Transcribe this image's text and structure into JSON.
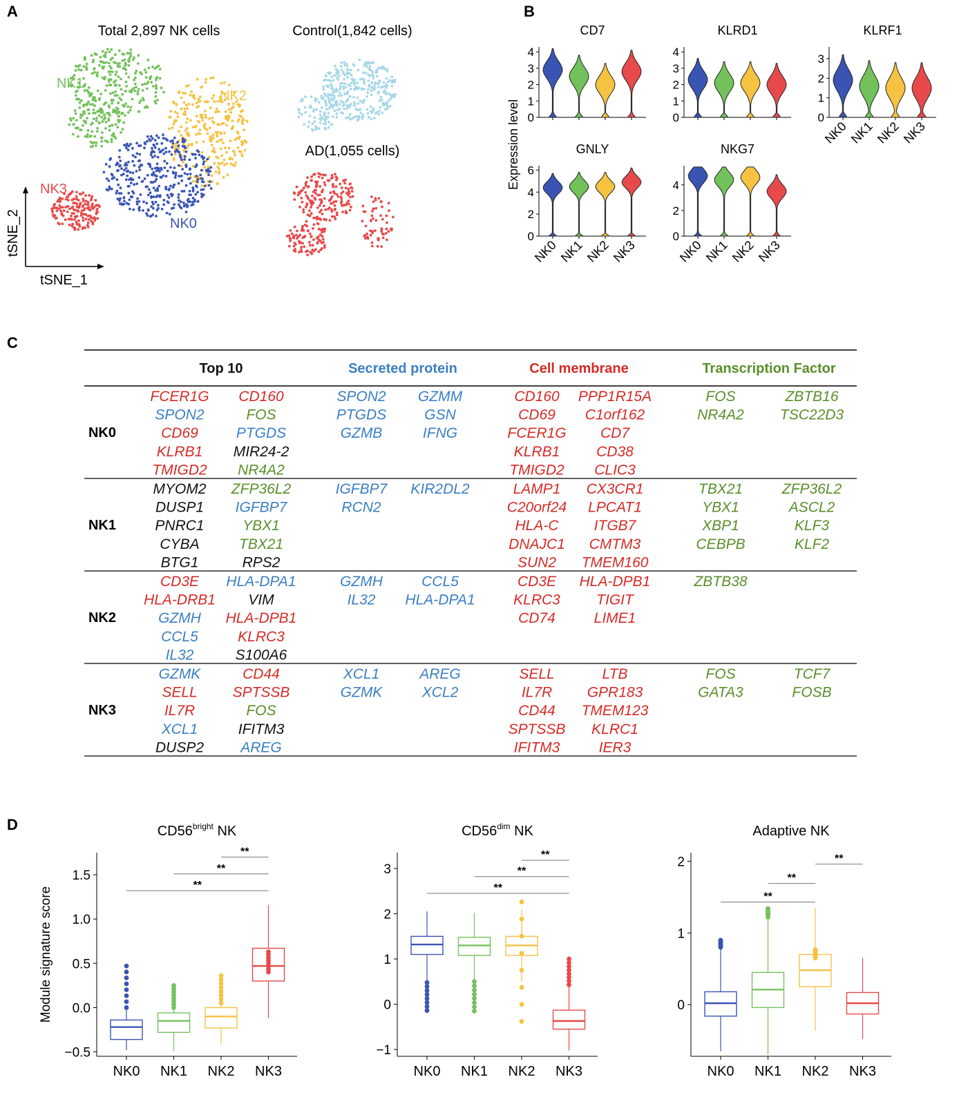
{
  "colors": {
    "NK0": "#3a54b4",
    "NK1": "#73c15b",
    "NK2": "#f5c242",
    "NK3": "#e8494a",
    "control": "#a8d8e6",
    "blue": "#3b7fc4",
    "red": "#d62b26",
    "green": "#5a8f2b",
    "black": "#111111"
  },
  "panels": {
    "a": "A",
    "b": "B",
    "c": "C",
    "d": "D"
  },
  "panelA": {
    "title_total": "Total 2,897 NK cells",
    "title_control": "Control(1,842 cells)",
    "title_ad": "AD(1,055 cells)",
    "cluster_labels": [
      "NK0",
      "NK1",
      "NK2",
      "NK3"
    ],
    "x_axis": "tSNE_1",
    "y_axis": "tSNE_2"
  },
  "panelB": {
    "ylabel": "Expression level",
    "groups": [
      "NK0",
      "NK1",
      "NK2",
      "NK3"
    ],
    "genes": [
      {
        "name": "CD7",
        "ticks": [
          "0",
          "1",
          "2",
          "3",
          "4"
        ]
      },
      {
        "name": "KLRD1",
        "ticks": [
          "0",
          "1",
          "2",
          "3",
          "4"
        ]
      },
      {
        "name": "KLRF1",
        "ticks": [
          "0",
          "1",
          "2",
          "3"
        ]
      },
      {
        "name": "GNLY",
        "ticks": [
          "0",
          "2",
          "4",
          "6"
        ]
      },
      {
        "name": "NKG7",
        "ticks": [
          "0",
          "2",
          "4"
        ]
      }
    ]
  },
  "panelC": {
    "headers": [
      "Top 10",
      "Secreted protein",
      "Cell membrane",
      "Transcription Factor"
    ],
    "rows": [
      {
        "cluster": "NK0",
        "top10": [
          [
            "FCER1G",
            "r"
          ],
          [
            "CD160",
            "r"
          ],
          [
            "SPON2",
            "b"
          ],
          [
            "FOS",
            "g"
          ],
          [
            "CD69",
            "r"
          ],
          [
            "PTGDS",
            "b"
          ],
          [
            "KLRB1",
            "r"
          ],
          [
            "MIR24-2",
            "k"
          ],
          [
            "TMIGD2",
            "r"
          ],
          [
            "NR4A2",
            "g"
          ]
        ],
        "secreted": [
          "SPON2",
          "GZMM",
          "PTGDS",
          "GSN",
          "GZMB",
          "IFNG"
        ],
        "membrane": [
          "CD160",
          "PPP1R15A",
          "CD69",
          "C1orf162",
          "FCER1G",
          "CD7",
          "KLRB1",
          "CD38",
          "TMIGD2",
          "CLIC3"
        ],
        "tf": [
          "FOS",
          "ZBTB16",
          "NR4A2",
          "TSC22D3"
        ]
      },
      {
        "cluster": "NK1",
        "top10": [
          [
            "MYOM2",
            "k"
          ],
          [
            "ZFP36L2",
            "g"
          ],
          [
            "DUSP1",
            "k"
          ],
          [
            "IGFBP7",
            "b"
          ],
          [
            "PNRC1",
            "k"
          ],
          [
            "YBX1",
            "g"
          ],
          [
            "CYBA",
            "k"
          ],
          [
            "TBX21",
            "g"
          ],
          [
            "BTG1",
            "k"
          ],
          [
            "RPS2",
            "k"
          ]
        ],
        "secreted": [
          "IGFBP7",
          "KIR2DL2",
          "RCN2"
        ],
        "membrane": [
          "LAMP1",
          "CX3CR1",
          "C20orf24",
          "LPCAT1",
          "HLA-C",
          "ITGB7",
          "DNAJC1",
          "CMTM3",
          "SUN2",
          "TMEM160"
        ],
        "tf": [
          "TBX21",
          "ZFP36L2",
          "YBX1",
          "ASCL2",
          "XBP1",
          "KLF3",
          "CEBPB",
          "KLF2"
        ]
      },
      {
        "cluster": "NK2",
        "top10": [
          [
            "CD3E",
            "r"
          ],
          [
            "HLA-DPA1",
            "b"
          ],
          [
            "HLA-DRB1",
            "r"
          ],
          [
            "VIM",
            "k"
          ],
          [
            "GZMH",
            "b"
          ],
          [
            "HLA-DPB1",
            "r"
          ],
          [
            "CCL5",
            "b"
          ],
          [
            "KLRC3",
            "r"
          ],
          [
            "IL32",
            "b"
          ],
          [
            "S100A6",
            "k"
          ]
        ],
        "secreted": [
          "GZMH",
          "CCL5",
          "IL32",
          "HLA-DPA1"
        ],
        "membrane": [
          "CD3E",
          "HLA-DPB1",
          "KLRC3",
          "TIGIT",
          "CD74",
          "LIME1"
        ],
        "tf": [
          "ZBTB38"
        ]
      },
      {
        "cluster": "NK3",
        "top10": [
          [
            "GZMK",
            "b"
          ],
          [
            "CD44",
            "r"
          ],
          [
            "SELL",
            "r"
          ],
          [
            "SPTSSB",
            "r"
          ],
          [
            "IL7R",
            "r"
          ],
          [
            "FOS",
            "g"
          ],
          [
            "XCL1",
            "b"
          ],
          [
            "IFITM3",
            "k"
          ],
          [
            "DUSP2",
            "k"
          ],
          [
            "AREG",
            "b"
          ]
        ],
        "secreted": [
          "XCL1",
          "AREG",
          "GZMK",
          "XCL2"
        ],
        "membrane": [
          "SELL",
          "LTB",
          "IL7R",
          "GPR183",
          "CD44",
          "TMEM123",
          "SPTSSB",
          "KLRC1",
          "IFITM3",
          "IER3"
        ],
        "tf": [
          "FOS",
          "TCF7",
          "GATA3",
          "FOSB"
        ]
      }
    ]
  },
  "chart_data": [
    {
      "type": "scatter",
      "title": "Total 2,897 NK cells",
      "xlabel": "tSNE_1",
      "ylabel": "tSNE_2",
      "series": [
        {
          "name": "NK0"
        },
        {
          "name": "NK1"
        },
        {
          "name": "NK2"
        },
        {
          "name": "NK3"
        }
      ]
    },
    {
      "type": "scatter",
      "title": "Control(1,842 cells)"
    },
    {
      "type": "scatter",
      "title": "AD(1,055 cells)"
    },
    {
      "type": "violin",
      "title": "CD7",
      "categories": [
        "NK0",
        "NK1",
        "NK2",
        "NK3"
      ],
      "ylim": [
        0,
        4.3
      ],
      "medians": [
        2.9,
        2.5,
        2.0,
        2.8
      ]
    },
    {
      "type": "violin",
      "title": "KLRD1",
      "categories": [
        "NK0",
        "NK1",
        "NK2",
        "NK3"
      ],
      "ylim": [
        0,
        4.3
      ],
      "medians": [
        2.3,
        2.1,
        2.1,
        2.0
      ]
    },
    {
      "type": "violin",
      "title": "KLRF1",
      "categories": [
        "NK0",
        "NK1",
        "NK2",
        "NK3"
      ],
      "ylim": [
        0,
        3.6
      ],
      "medians": [
        1.9,
        1.6,
        1.5,
        1.5
      ]
    },
    {
      "type": "violin",
      "title": "GNLY",
      "categories": [
        "NK0",
        "NK1",
        "NK2",
        "NK3"
      ],
      "ylim": [
        0,
        6.4
      ],
      "medians": [
        4.4,
        4.5,
        4.5,
        4.9
      ]
    },
    {
      "type": "violin",
      "title": "NKG7",
      "categories": [
        "NK0",
        "NK1",
        "NK2",
        "NK3"
      ],
      "ylim": [
        0,
        5.5
      ],
      "medians": [
        4.7,
        4.4,
        4.6,
        3.5
      ]
    },
    {
      "type": "box",
      "title": "CD56bright NK",
      "title_main": "CD56",
      "title_sup": "bright",
      "title_tail": " NK",
      "ylabel": "Module signature score",
      "categories": [
        "NK0",
        "NK1",
        "NK2",
        "NK3"
      ],
      "ylim": [
        -0.55,
        1.75
      ],
      "yticks": [
        "-0.5",
        "0.0",
        "0.5",
        "1.0",
        "1.5"
      ],
      "ytick_values": [
        -0.5,
        0.0,
        0.5,
        1.0,
        1.5
      ],
      "boxes": [
        {
          "q1": -0.36,
          "median": -0.22,
          "q3": -0.14,
          "wlo": -0.48,
          "whi": -0.02
        },
        {
          "q1": -0.28,
          "median": -0.15,
          "q3": -0.06,
          "wlo": -0.49,
          "whi": 0.12
        },
        {
          "q1": -0.23,
          "median": -0.1,
          "q3": 0.0,
          "wlo": -0.42,
          "whi": 0.22
        },
        {
          "q1": 0.3,
          "median": 0.47,
          "q3": 0.67,
          "wlo": -0.12,
          "whi": 1.16
        }
      ],
      "outliers": [
        [
          0.0,
          0.47
        ],
        [
          0.0,
          0.25
        ],
        [
          0.05,
          0.36
        ],
        [
          0.4,
          0.63
        ]
      ],
      "sig": [
        {
          "from": 0,
          "to": 3,
          "y": 1.32,
          "label": "**"
        },
        {
          "from": 1,
          "to": 3,
          "y": 1.51,
          "label": "**"
        },
        {
          "from": 2,
          "to": 3,
          "y": 1.7,
          "label": "**"
        }
      ]
    },
    {
      "type": "box",
      "title": "CD56dim NK",
      "title_main": "CD56",
      "title_sup": "dim",
      "title_tail": " NK",
      "categories": [
        "NK0",
        "NK1",
        "NK2",
        "NK3"
      ],
      "ylim": [
        -1.15,
        3.35
      ],
      "yticks": [
        "-1",
        "0",
        "1",
        "2",
        "3"
      ],
      "ytick_values": [
        -1,
        0,
        1,
        2,
        3
      ],
      "boxes": [
        {
          "q1": 1.1,
          "median": 1.32,
          "q3": 1.5,
          "wlo": 0.5,
          "whi": 2.05
        },
        {
          "q1": 1.08,
          "median": 1.3,
          "q3": 1.48,
          "wlo": 0.52,
          "whi": 2.02
        },
        {
          "q1": 1.08,
          "median": 1.3,
          "q3": 1.5,
          "wlo": 0.5,
          "whi": 2.1
        },
        {
          "q1": -0.55,
          "median": -0.37,
          "q3": -0.13,
          "wlo": -1.02,
          "whi": 0.42
        }
      ],
      "outliers": [
        [
          -0.14,
          0.48
        ],
        [
          -0.15,
          0.5
        ],
        [
          -0.38,
          2.26
        ],
        [
          0.43,
          1.0
        ]
      ],
      "sig": [
        {
          "from": 0,
          "to": 3,
          "y": 2.45,
          "label": "**"
        },
        {
          "from": 1,
          "to": 3,
          "y": 2.82,
          "label": "**"
        },
        {
          "from": 2,
          "to": 3,
          "y": 3.18,
          "label": "**"
        }
      ]
    },
    {
      "type": "box",
      "title": "Adaptive NK",
      "categories": [
        "NK0",
        "NK1",
        "NK2",
        "NK3"
      ],
      "ylim": [
        -0.72,
        2.12
      ],
      "yticks": [
        "0",
        "1",
        "2"
      ],
      "ytick_values": [
        0,
        1,
        2
      ],
      "boxes": [
        {
          "q1": -0.16,
          "median": 0.02,
          "q3": 0.18,
          "wlo": -0.65,
          "whi": 0.8
        },
        {
          "q1": -0.04,
          "median": 0.21,
          "q3": 0.45,
          "wlo": -0.7,
          "whi": 1.22
        },
        {
          "q1": 0.25,
          "median": 0.48,
          "q3": 0.7,
          "wlo": -0.36,
          "whi": 1.35
        },
        {
          "q1": -0.13,
          "median": 0.02,
          "q3": 0.17,
          "wlo": -0.48,
          "whi": 0.65
        }
      ],
      "outliers": [
        [
          0.8,
          0.9
        ],
        [
          1.22,
          1.34
        ],
        [
          0.65,
          0.77
        ]
      ],
      "sig": [
        {
          "from": 0,
          "to": 2,
          "y": 1.43,
          "label": "**"
        },
        {
          "from": 1,
          "to": 2,
          "y": 1.69,
          "label": "**"
        },
        {
          "from": 2,
          "to": 3,
          "y": 1.96,
          "label": "**"
        }
      ]
    }
  ]
}
